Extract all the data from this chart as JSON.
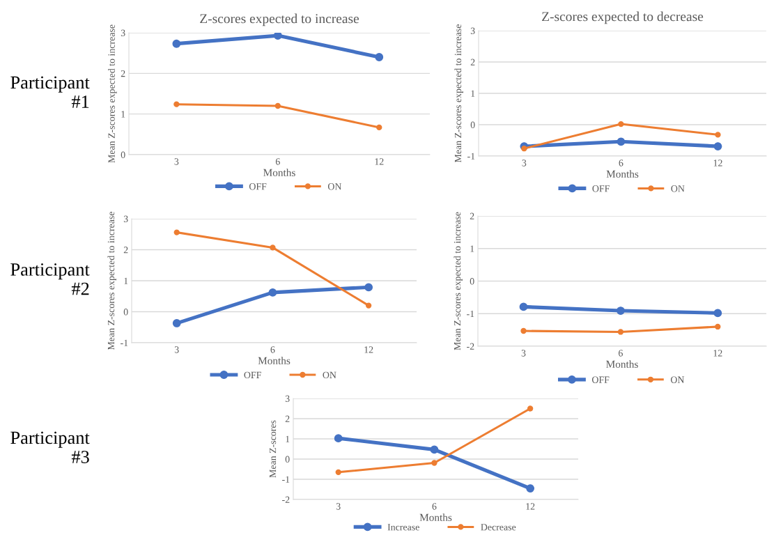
{
  "chart_data": [
    {
      "type": "line",
      "title": "Z-scores expected to increase",
      "xlabel": "Months",
      "ylabel": "Mean Z-scores expected to increase",
      "categories": [
        "3",
        "6",
        "12"
      ],
      "ylim": [
        0,
        3
      ],
      "yticks": [
        0,
        1,
        2,
        3
      ],
      "grid": "y",
      "legend": "bottom",
      "marker": "circle",
      "annotations": [
        "Participant\n#1"
      ],
      "series": [
        {
          "name": "OFF",
          "color": "#4472c4",
          "values": [
            2.73,
            2.93,
            2.4
          ]
        },
        {
          "name": "ON",
          "color": "#ed7d31",
          "values": [
            1.24,
            1.2,
            0.67
          ]
        }
      ]
    },
    {
      "type": "line",
      "title": "Z-scores expected to decrease",
      "xlabel": "Months",
      "ylabel": "Mean Z-scores expected to increase",
      "categories": [
        "3",
        "6",
        "12"
      ],
      "ylim": [
        -1,
        3
      ],
      "yticks": [
        -1,
        0,
        1,
        2,
        3
      ],
      "grid": "y",
      "legend": "bottom",
      "marker": "circle",
      "series": [
        {
          "name": "OFF",
          "color": "#4472c4",
          "values": [
            -0.69,
            -0.54,
            -0.69
          ]
        },
        {
          "name": "ON",
          "color": "#ed7d31",
          "values": [
            -0.76,
            0.02,
            -0.32
          ]
        }
      ]
    },
    {
      "type": "line",
      "xlabel": "Months",
      "ylabel": "Mean Z-scores expected to increase",
      "categories": [
        "3",
        "6",
        "12"
      ],
      "ylim": [
        -1,
        3
      ],
      "yticks": [
        -1,
        0,
        1,
        2,
        3
      ],
      "grid": "y",
      "legend": "bottom",
      "marker": "circle",
      "annotations": [
        "Participant\n#2"
      ],
      "series": [
        {
          "name": "OFF",
          "color": "#4472c4",
          "values": [
            -0.37,
            0.62,
            0.79
          ]
        },
        {
          "name": "ON",
          "color": "#ed7d31",
          "values": [
            2.56,
            2.07,
            0.2
          ]
        }
      ]
    },
    {
      "type": "line",
      "xlabel": "Months",
      "ylabel": "Mean Z-scores expected to increase",
      "categories": [
        "3",
        "6",
        "12"
      ],
      "ylim": [
        -2,
        2
      ],
      "yticks": [
        -2,
        -1,
        0,
        1,
        2
      ],
      "grid": "y",
      "legend": "bottom",
      "marker": "circle",
      "series": [
        {
          "name": "OFF",
          "color": "#4472c4",
          "values": [
            -0.79,
            -0.91,
            -0.98
          ]
        },
        {
          "name": "ON",
          "color": "#ed7d31",
          "values": [
            -1.53,
            -1.56,
            -1.4
          ]
        }
      ]
    },
    {
      "type": "line",
      "xlabel": "Months",
      "ylabel": "Mean Z-scores",
      "categories": [
        "3",
        "6",
        "12"
      ],
      "ylim": [
        -2,
        3
      ],
      "yticks": [
        -2,
        -1,
        0,
        1,
        2,
        3
      ],
      "grid": "y",
      "legend": "bottom",
      "marker": "circle",
      "annotations": [
        "Participant\n#3"
      ],
      "series": [
        {
          "name": "Increase",
          "color": "#4472c4",
          "values": [
            1.03,
            0.47,
            -1.45
          ]
        },
        {
          "name": "Decrease",
          "color": "#ed7d31",
          "values": [
            -0.65,
            -0.19,
            2.5
          ]
        }
      ]
    }
  ]
}
